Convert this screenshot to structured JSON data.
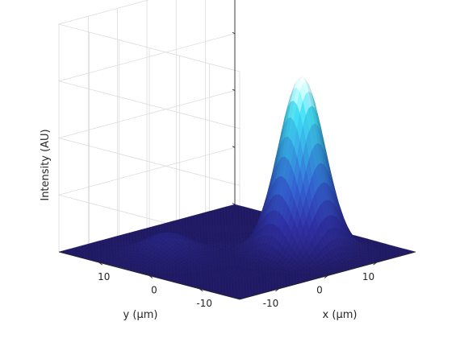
{
  "chart_data": {
    "type": "surface",
    "title": "",
    "xlabel": "x (μm)",
    "ylabel": "y (μm)",
    "zlabel": "Intensity (AU)",
    "xlim": [
      -18,
      18
    ],
    "ylim": [
      -18,
      18
    ],
    "zlim": [
      0,
      1.3
    ],
    "xticks": [
      -10,
      0,
      10
    ],
    "xtick_labels": [
      "-10",
      "0",
      "10"
    ],
    "yticks": [
      -10,
      0,
      10
    ],
    "ytick_labels": [
      "-10",
      "0",
      "10"
    ],
    "zticks": [
      0,
      0.325,
      0.65,
      0.975
    ],
    "grid": true,
    "colormap": [
      "#1f1a66",
      "#2a2a90",
      "#2d55b8",
      "#2f8fc8",
      "#3bc4d8",
      "#ffffff"
    ],
    "peaks": [
      {
        "label": "main peak",
        "x": 6.5,
        "y": -6.5,
        "amplitude": 1.0,
        "sigma": 3.3
      },
      {
        "label": "secondary peak",
        "x": -8.0,
        "y": 6.0,
        "amplitude": 0.12,
        "sigma": 3.6
      }
    ]
  }
}
